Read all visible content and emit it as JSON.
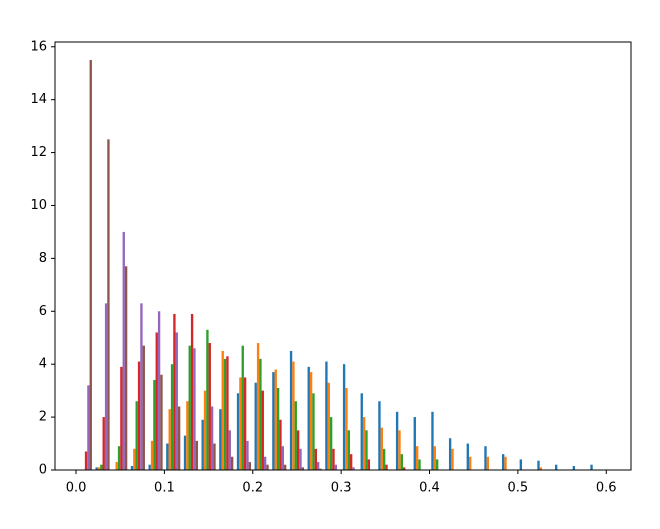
{
  "chart_data": {
    "type": "histogram",
    "bins": [
      0.0,
      0.02,
      0.04,
      0.06,
      0.08,
      0.1,
      0.12,
      0.14,
      0.16,
      0.18,
      0.2,
      0.22,
      0.24,
      0.26,
      0.28,
      0.3,
      0.32,
      0.34,
      0.36,
      0.38,
      0.4,
      0.42,
      0.44,
      0.46,
      0.48,
      0.5,
      0.52,
      0.54,
      0.56,
      0.58,
      0.6
    ],
    "series": [
      {
        "color": "#1f77b4",
        "values": [
          0,
          0.1,
          0,
          0.15,
          0.2,
          1.0,
          1.3,
          1.9,
          2.3,
          2.9,
          3.3,
          3.7,
          4.5,
          3.9,
          4.1,
          4.0,
          2.9,
          2.6,
          2.2,
          2.0,
          2.2,
          1.2,
          1.0,
          0.9,
          0.6,
          0.4,
          0.35,
          0.2,
          0.15,
          0.2
        ]
      },
      {
        "color": "#ff7f0e",
        "values": [
          0,
          0.1,
          0.3,
          0.8,
          1.1,
          2.3,
          2.6,
          3.0,
          4.5,
          3.5,
          4.8,
          3.8,
          4.1,
          3.7,
          3.3,
          3.1,
          2.0,
          1.6,
          1.5,
          0.9,
          0.9,
          0.8,
          0.5,
          0.5,
          0.5,
          0,
          0.1,
          0,
          0,
          0
        ]
      },
      {
        "color": "#2ca02c",
        "values": [
          0,
          0.2,
          0.9,
          2.6,
          3.4,
          4.0,
          4.7,
          5.3,
          4.2,
          4.7,
          4.2,
          3.1,
          2.6,
          2.9,
          2.0,
          1.5,
          1.5,
          0.8,
          0.6,
          0.4,
          0.4,
          0,
          0,
          0,
          0,
          0,
          0,
          0,
          0,
          0
        ]
      },
      {
        "color": "#d62728",
        "values": [
          0.7,
          2.0,
          3.9,
          4.1,
          5.2,
          5.9,
          5.9,
          4.8,
          4.3,
          3.5,
          3.0,
          1.9,
          1.5,
          0.8,
          0.8,
          0.6,
          0.4,
          0.2,
          0.1,
          0,
          0,
          0,
          0,
          0,
          0,
          0,
          0,
          0,
          0,
          0
        ]
      },
      {
        "color": "#9467bd",
        "values": [
          3.2,
          6.3,
          9.0,
          6.3,
          6.0,
          5.2,
          4.6,
          2.4,
          1.5,
          1.1,
          0.5,
          0.9,
          0.8,
          0.3,
          0.2,
          0.1,
          0,
          0,
          0,
          0,
          0,
          0,
          0,
          0,
          0,
          0,
          0,
          0,
          0,
          0
        ]
      },
      {
        "color": "#8c564b",
        "values": [
          15.5,
          12.5,
          7.7,
          4.7,
          3.6,
          2.4,
          1.1,
          1.0,
          0.5,
          0.3,
          0.2,
          0.2,
          0.1,
          0.05,
          0,
          0,
          0,
          0,
          0,
          0,
          0,
          0,
          0,
          0,
          0,
          0,
          0,
          0,
          0,
          0
        ]
      }
    ],
    "xlim": [
      -0.0238,
      0.628
    ],
    "xticks": [
      {
        "value": 0,
        "label": "0.0"
      },
      0.1,
      0.2,
      0.3,
      0.4,
      0.5,
      0.6
    ],
    "ylim": [
      0,
      16.18
    ],
    "yticks": [
      0,
      2,
      4,
      6,
      8,
      10,
      12,
      14,
      16
    ],
    "grid": false
  }
}
